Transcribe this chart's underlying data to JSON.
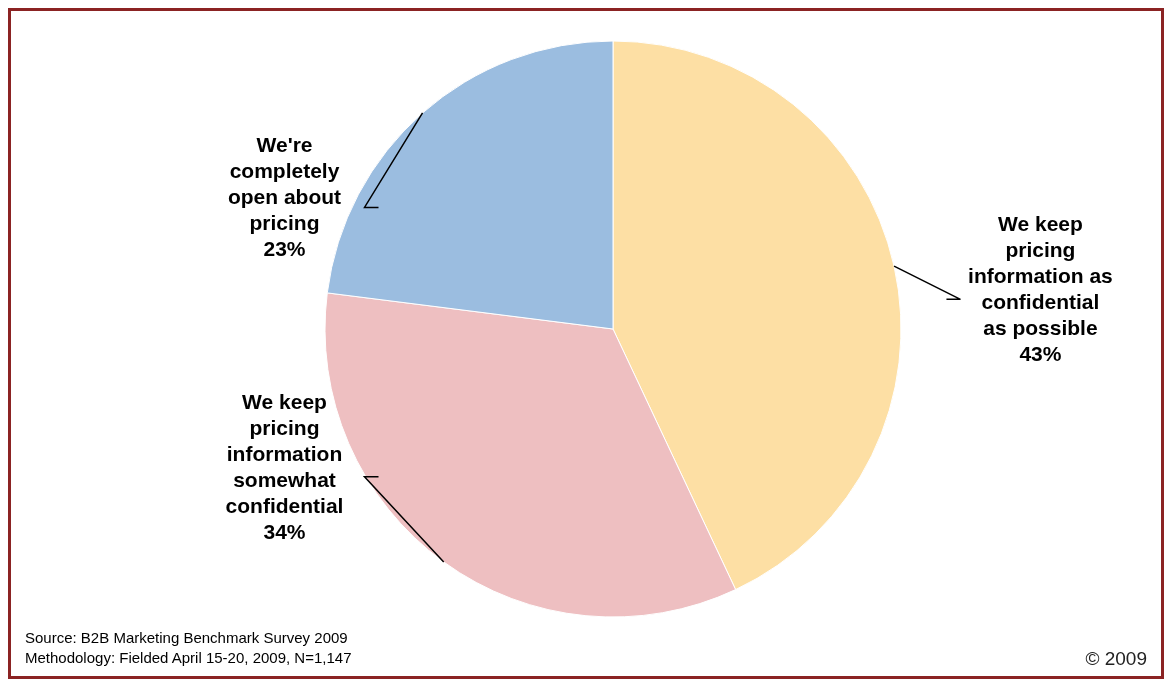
{
  "chart_data": {
    "type": "pie",
    "categories": [
      "We keep pricing information as confidential as possible",
      "We keep pricing information somewhat confidential",
      "We're completely open about pricing"
    ],
    "values": [
      43,
      34,
      23
    ],
    "colors": [
      "#fddfa4",
      "#eebfc1",
      "#9bbde0"
    ],
    "value_labels": [
      "43%",
      "34%",
      "23%"
    ],
    "annotations": [
      "Source: B2B Marketing Benchmark Survey 2009",
      "Methodology: Fielded  April 15-20, 2009, N=1,147",
      "© 2009"
    ]
  }
}
